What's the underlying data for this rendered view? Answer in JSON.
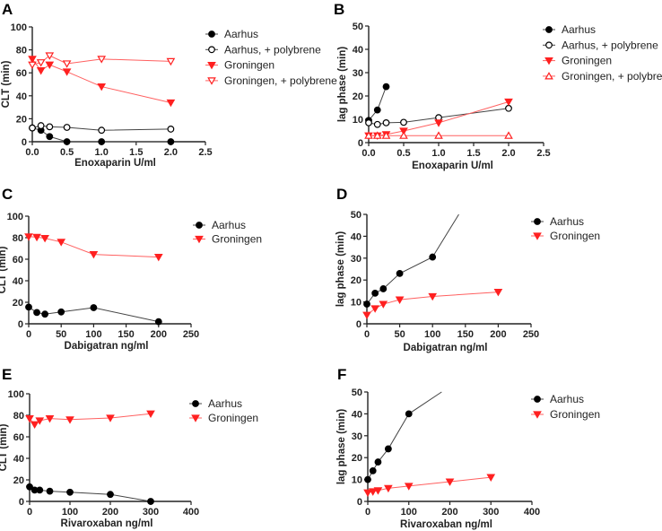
{
  "colors": {
    "black": "#000000",
    "black_line": "#444444",
    "red": "#ff2020",
    "red_line": "#ff6060"
  },
  "chart_data": [
    {
      "panel": "A",
      "type": "line",
      "xlabel": "Enoxaparin U/ml",
      "ylabel": "CLT (min)",
      "xlim": [
        0,
        2.5
      ],
      "xticks": [
        "0.0",
        "0.5",
        "1.0",
        "1.5",
        "2.0",
        "2.5"
      ],
      "xtick_values": [
        0,
        0.5,
        1,
        1.5,
        2,
        2.5
      ],
      "ylim": [
        0,
        100
      ],
      "yticks": [
        "0",
        "20",
        "40",
        "60",
        "80",
        "100"
      ],
      "ytick_values": [
        0,
        20,
        40,
        60,
        80,
        100
      ],
      "legend": "right",
      "series": [
        {
          "name": "Aarhus",
          "marker": "circle-filled",
          "color": "black",
          "x": [
            0,
            0.125,
            0.25,
            0.5,
            1,
            2
          ],
          "y": [
            12,
            10,
            4.5,
            0,
            0,
            0
          ]
        },
        {
          "name": "Aarhus, + polybrene",
          "marker": "circle-open",
          "color": "black",
          "x": [
            0,
            0.125,
            0.25,
            0.5,
            1,
            2
          ],
          "y": [
            12,
            14,
            13,
            12.5,
            10,
            11
          ]
        },
        {
          "name": "Groningen",
          "marker": "tri-down-filled",
          "color": "red",
          "x": [
            0,
            0.125,
            0.25,
            0.5,
            1,
            2
          ],
          "y": [
            72,
            62,
            67,
            61,
            48,
            34
          ]
        },
        {
          "name": "Groningen, + polybrene",
          "marker": "tri-down-open",
          "color": "red",
          "x": [
            0,
            0.125,
            0.25,
            0.5,
            1,
            2
          ],
          "y": [
            67,
            69,
            75,
            68,
            72,
            70
          ]
        }
      ]
    },
    {
      "panel": "B",
      "type": "line",
      "xlabel": "Enoxaparin U/ml",
      "ylabel": "lag phase (min)",
      "xlim": [
        0,
        2.5
      ],
      "xticks": [
        "0.0",
        "0.5",
        "1.0",
        "1.5",
        "2.0",
        "2.5"
      ],
      "xtick_values": [
        0,
        0.5,
        1,
        1.5,
        2,
        2.5
      ],
      "ylim": [
        0,
        50
      ],
      "yticks": [
        "0",
        "10",
        "20",
        "30",
        "40",
        "50"
      ],
      "ytick_values": [
        0,
        10,
        20,
        30,
        40,
        50
      ],
      "legend": "right",
      "series": [
        {
          "name": "Aarhus",
          "marker": "circle-filled",
          "color": "black",
          "x": [
            0,
            0.125,
            0.25
          ],
          "y": [
            9.5,
            14,
            24
          ]
        },
        {
          "name": "Aarhus, + polybrene",
          "marker": "circle-open",
          "color": "black",
          "x": [
            0,
            0.125,
            0.25,
            0.5,
            1,
            2
          ],
          "y": [
            8.5,
            7.8,
            8.5,
            8.7,
            10.7,
            14.7
          ]
        },
        {
          "name": "Groningen",
          "marker": "tri-down-filled",
          "color": "red",
          "x": [
            0,
            0.125,
            0.25,
            0.5,
            1,
            2
          ],
          "y": [
            3,
            3,
            3.5,
            5,
            8.5,
            17.5
          ]
        },
        {
          "name": "Groningen, + polybrene",
          "marker": "tri-up-open",
          "color": "red",
          "x": [
            0,
            0.125,
            0.25,
            0.5,
            1,
            2
          ],
          "y": [
            3,
            3,
            3,
            3,
            3,
            3
          ]
        }
      ]
    },
    {
      "panel": "C",
      "type": "line",
      "xlabel": "Dabigatran ng/ml",
      "ylabel": "CLT (min)",
      "xlim": [
        0,
        250
      ],
      "xticks": [
        "0",
        "50",
        "100",
        "150",
        "200",
        "250"
      ],
      "xtick_values": [
        0,
        50,
        100,
        150,
        200,
        250
      ],
      "ylim": [
        0,
        100
      ],
      "yticks": [
        "0",
        "20",
        "40",
        "60",
        "80",
        "100"
      ],
      "ytick_values": [
        0,
        20,
        40,
        60,
        80,
        100
      ],
      "legend": "right",
      "series": [
        {
          "name": "Aarhus",
          "marker": "circle-filled",
          "color": "black",
          "x": [
            0,
            12.5,
            25,
            50,
            100,
            200
          ],
          "y": [
            15.5,
            10.5,
            9,
            11,
            15,
            2
          ]
        },
        {
          "name": "Groningen",
          "marker": "tri-down-filled",
          "color": "red",
          "x": [
            0,
            12.5,
            25,
            50,
            100,
            200
          ],
          "y": [
            81,
            80.5,
            79.5,
            76,
            64.5,
            62
          ]
        }
      ]
    },
    {
      "panel": "D",
      "type": "line",
      "xlabel": "Dabigatran ng/ml",
      "ylabel": "lag phase (min)",
      "xlim": [
        0,
        250
      ],
      "xticks": [
        "0",
        "50",
        "100",
        "150",
        "200",
        "250"
      ],
      "xtick_values": [
        0,
        50,
        100,
        150,
        200,
        250
      ],
      "ylim": [
        0,
        50
      ],
      "yticks": [
        "0",
        "10",
        "20",
        "30",
        "40",
        "50"
      ],
      "ytick_values": [
        0,
        10,
        20,
        30,
        40,
        50
      ],
      "legend": "right",
      "series": [
        {
          "name": "Aarhus",
          "marker": "circle-filled",
          "color": "black",
          "x": [
            0,
            12.5,
            25,
            50,
            100
          ],
          "y": [
            9,
            14,
            16,
            23,
            30.5
          ],
          "line_continues_to": [
            140,
            50
          ]
        },
        {
          "name": "Groningen",
          "marker": "tri-down-filled",
          "color": "red",
          "x": [
            0,
            12.5,
            25,
            50,
            100,
            200
          ],
          "y": [
            4,
            7,
            9,
            11,
            12.5,
            14.5
          ]
        }
      ]
    },
    {
      "panel": "E",
      "type": "line",
      "xlabel": "Rivaroxaban ng/ml",
      "ylabel": "CLT (min)",
      "xlim": [
        0,
        400
      ],
      "xticks": [
        "0",
        "100",
        "200",
        "300",
        "400"
      ],
      "xtick_values": [
        0,
        100,
        200,
        300,
        400
      ],
      "ylim": [
        0,
        100
      ],
      "yticks": [
        "0",
        "20",
        "40",
        "60",
        "80",
        "100"
      ],
      "ytick_values": [
        0,
        20,
        40,
        60,
        80,
        100
      ],
      "legend": "right",
      "series": [
        {
          "name": "Aarhus",
          "marker": "circle-filled",
          "color": "black",
          "x": [
            0,
            12.5,
            25,
            50,
            100,
            200,
            300
          ],
          "y": [
            13.5,
            10.5,
            10.5,
            9.5,
            8.5,
            6.5,
            0
          ]
        },
        {
          "name": "Groningen",
          "marker": "tri-down-filled",
          "color": "red",
          "x": [
            0,
            12.5,
            25,
            50,
            100,
            200,
            300
          ],
          "y": [
            77,
            71.5,
            75,
            77,
            76,
            77.5,
            81.5
          ]
        }
      ]
    },
    {
      "panel": "F",
      "type": "line",
      "xlabel": "Rivaroxaban ng/ml",
      "ylabel": "lag phase (min)",
      "xlim": [
        0,
        400
      ],
      "xticks": [
        "0",
        "100",
        "200",
        "300",
        "400"
      ],
      "xtick_values": [
        0,
        100,
        200,
        300,
        400
      ],
      "ylim": [
        0,
        50
      ],
      "yticks": [
        "0",
        "10",
        "20",
        "30",
        "40",
        "50"
      ],
      "ytick_values": [
        0,
        10,
        20,
        30,
        40,
        50
      ],
      "legend": "right",
      "series": [
        {
          "name": "Aarhus",
          "marker": "circle-filled",
          "color": "black",
          "x": [
            0,
            12.5,
            25,
            50,
            100
          ],
          "y": [
            10,
            14,
            18,
            24,
            40
          ],
          "line_continues_to": [
            180,
            50
          ]
        },
        {
          "name": "Groningen",
          "marker": "tri-down-filled",
          "color": "red",
          "x": [
            0,
            12.5,
            25,
            50,
            100,
            200,
            300
          ],
          "y": [
            4,
            4.5,
            5,
            6,
            7,
            9,
            11
          ]
        }
      ]
    }
  ]
}
